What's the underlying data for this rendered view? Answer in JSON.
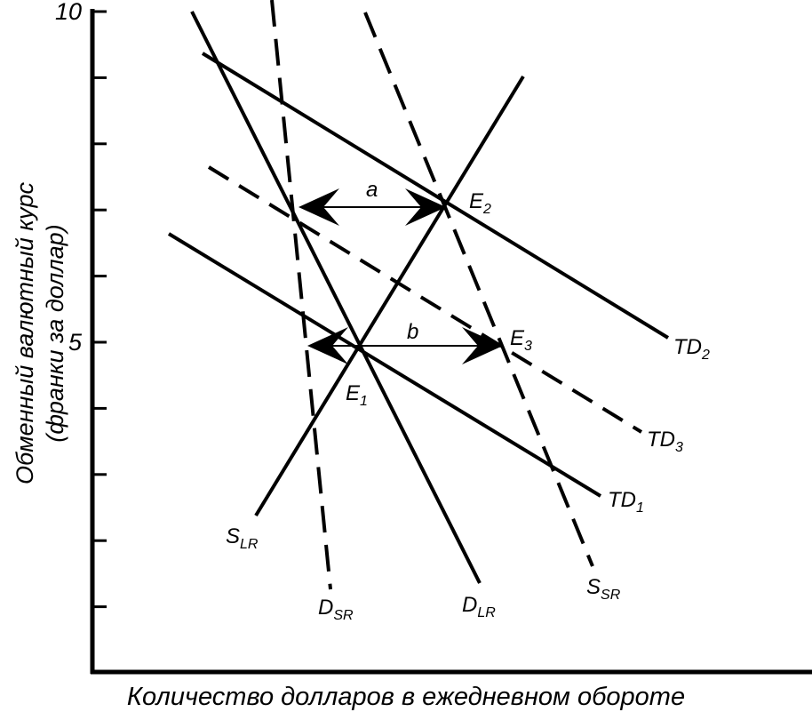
{
  "chart_data": {
    "type": "line",
    "ylabel_line1": "Обменный валютный курс",
    "ylabel_line2": "(франки за доллар)",
    "xlabel": "Количество долларов в ежедневном обороте",
    "yticks": [
      {
        "value": 10,
        "label": "10"
      },
      {
        "value": 5,
        "label": "5"
      }
    ],
    "ylim": [
      0,
      10
    ],
    "curves": [
      {
        "id": "d-sr",
        "label_main": "D",
        "label_sub": "SR",
        "style": "dashed"
      },
      {
        "id": "d-lr",
        "label_main": "D",
        "label_sub": "LR",
        "style": "solid"
      },
      {
        "id": "s-lr",
        "label_main": "S",
        "label_sub": "LR",
        "style": "solid"
      },
      {
        "id": "s-sr",
        "label_main": "S",
        "label_sub": "SR",
        "style": "dashed"
      },
      {
        "id": "td1",
        "label_main": "TD",
        "label_sub": "1",
        "style": "solid"
      },
      {
        "id": "td2",
        "label_main": "TD",
        "label_sub": "2",
        "style": "solid"
      },
      {
        "id": "td3",
        "label_main": "TD",
        "label_sub": "3",
        "style": "dashed"
      }
    ],
    "points": [
      {
        "label_main": "E",
        "label_sub": "1"
      },
      {
        "label_main": "E",
        "label_sub": "2"
      },
      {
        "label_main": "E",
        "label_sub": "3"
      }
    ],
    "arrows": [
      {
        "label": "a"
      },
      {
        "label": "b"
      }
    ]
  }
}
